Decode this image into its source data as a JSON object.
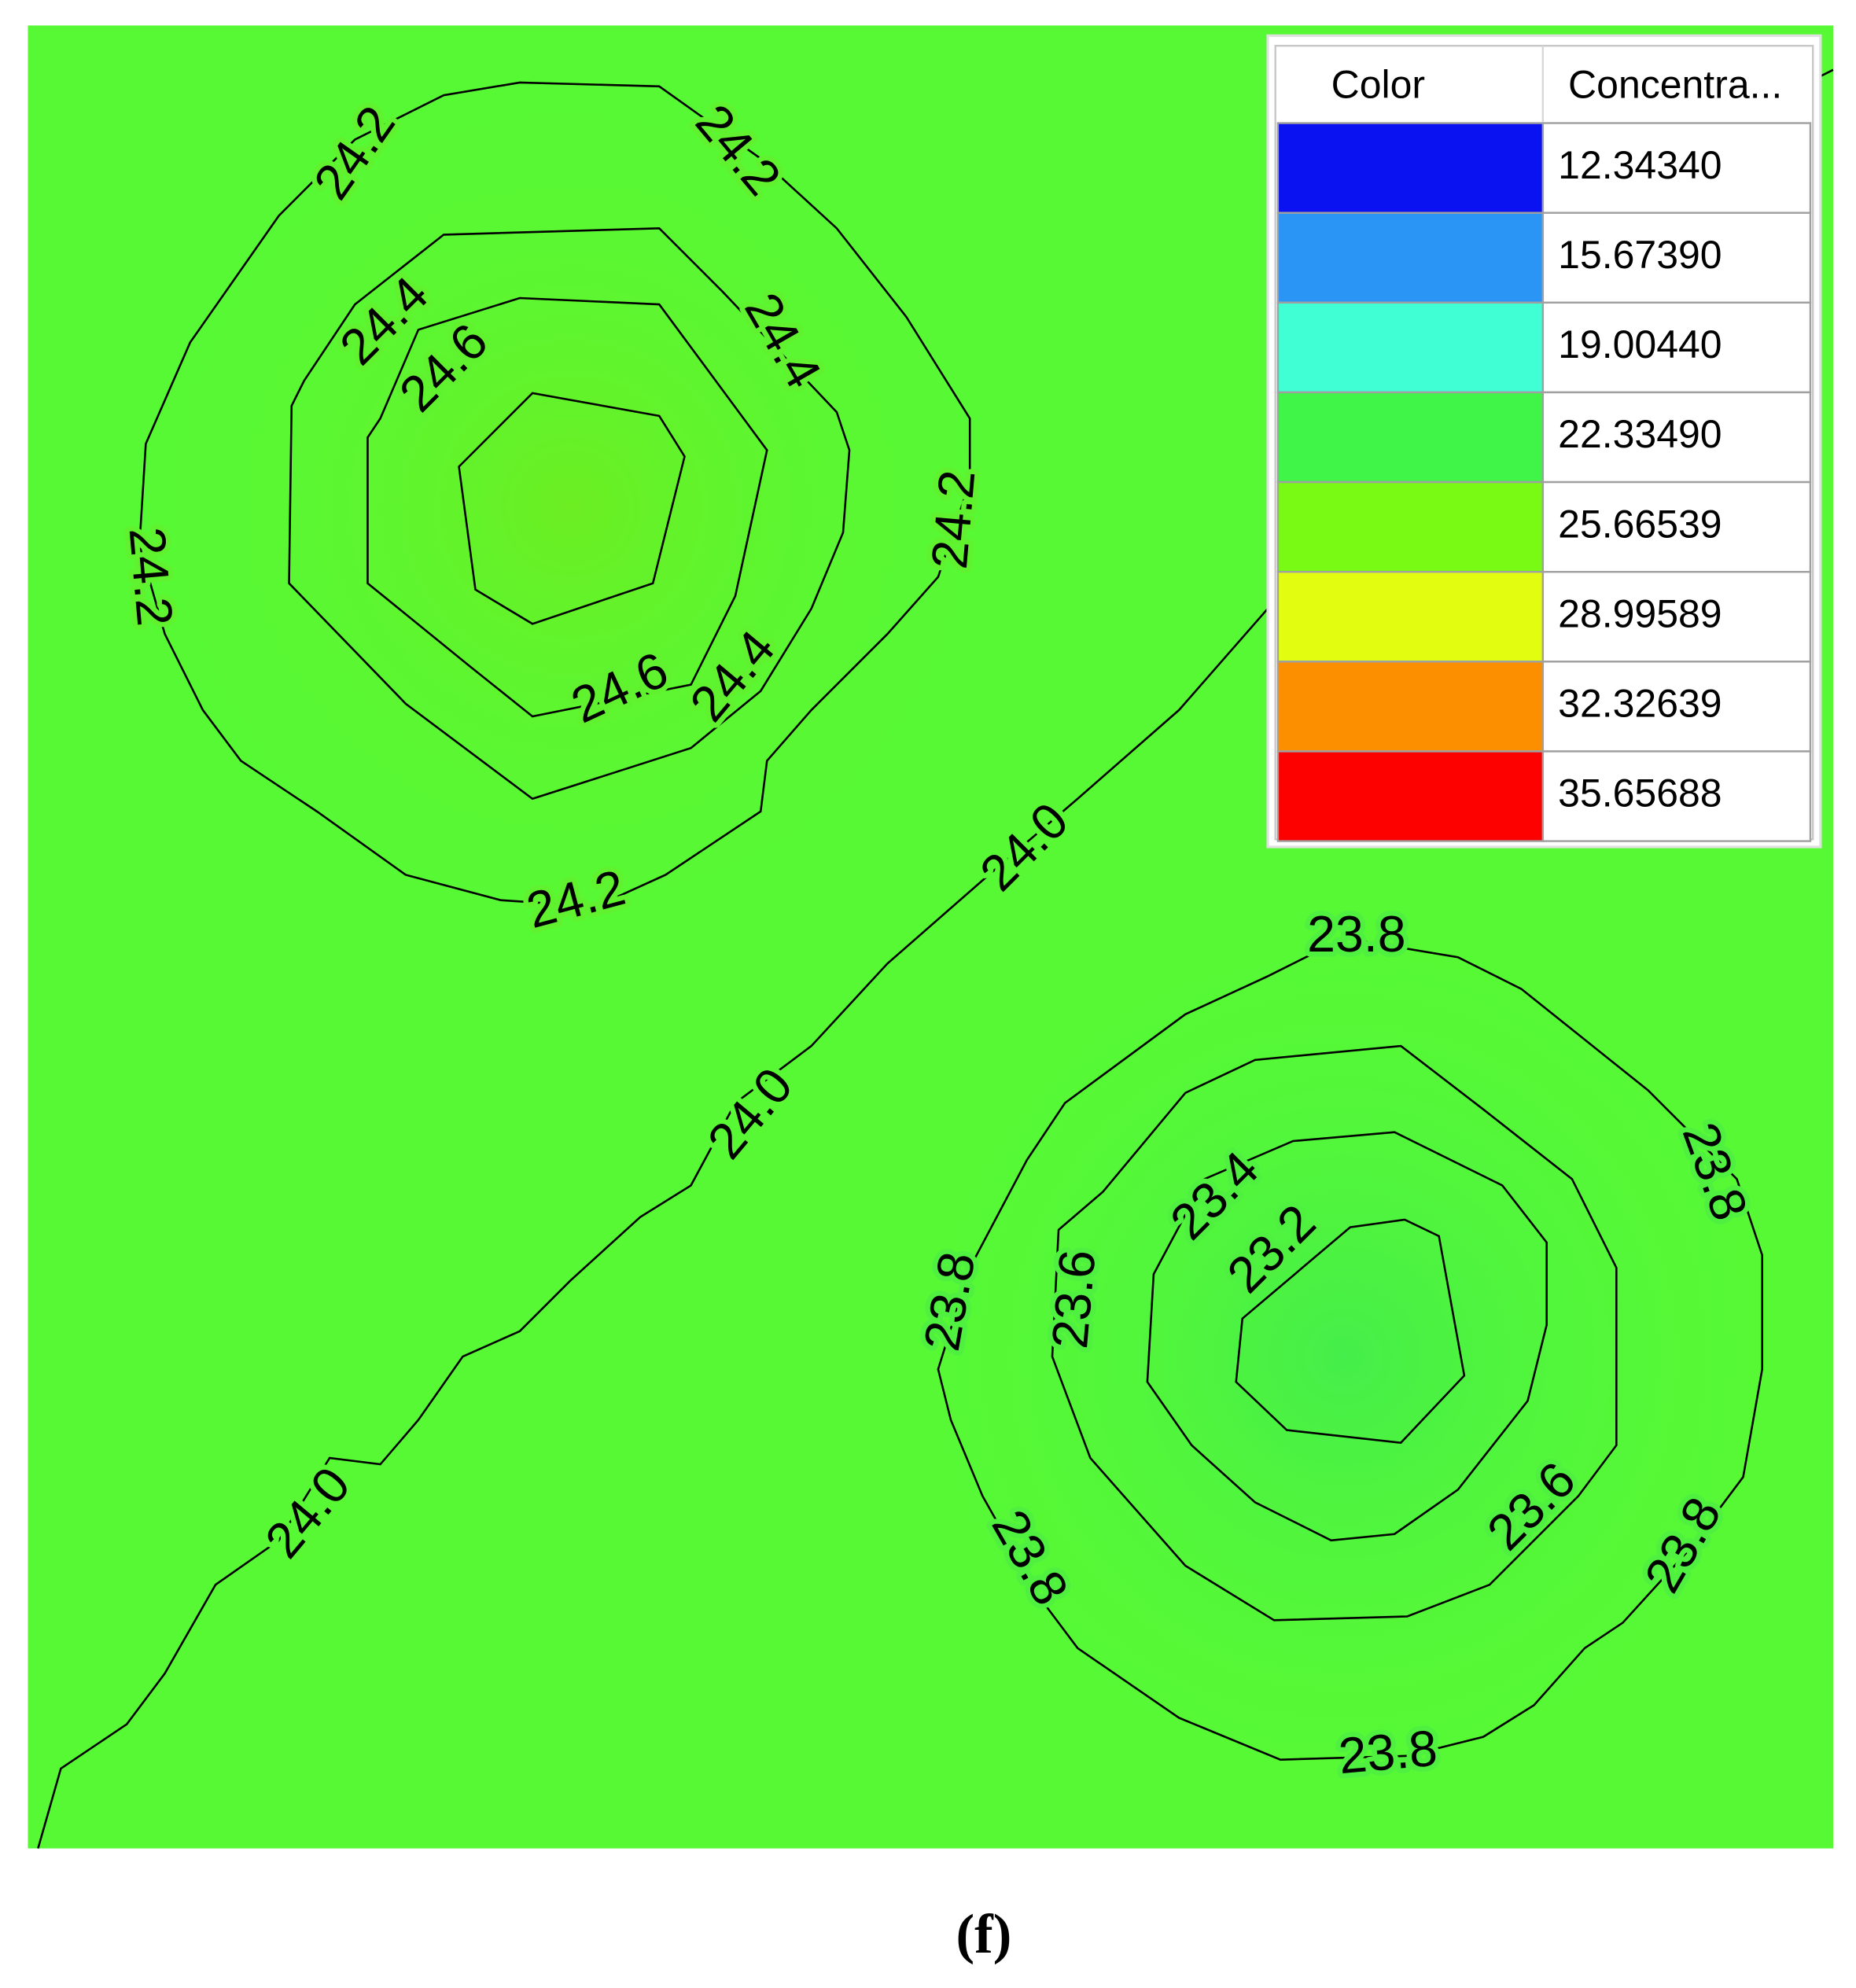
{
  "map": {
    "contour_labels": [
      "24.2",
      "24.2",
      "24.4",
      "24.6",
      "24.4",
      "24.2",
      "24.2",
      "24.6",
      "24.4",
      "24.2",
      "24.0",
      "24.0",
      "24.0",
      "23.8",
      "23.8",
      "23.4",
      "23.2",
      "23.6",
      "23.8",
      "23.6",
      "23.8",
      "23.8",
      "23.8"
    ]
  },
  "legend": {
    "header": [
      "Color",
      "Concentra..."
    ],
    "rows": [
      {
        "color": "#0a12f2",
        "value": "12.34340"
      },
      {
        "color": "#2b95f5",
        "value": "15.67390"
      },
      {
        "color": "#40ffd4",
        "value": "19.00440"
      },
      {
        "color": "#40f548",
        "value": "22.33490"
      },
      {
        "color": "#78fa14",
        "value": "25.66539"
      },
      {
        "color": "#e2fd0f",
        "value": "28.99589"
      },
      {
        "color": "#fb8f00",
        "value": "32.32639"
      },
      {
        "color": "#fd0000",
        "value": "35.65688"
      }
    ]
  },
  "caption": "(f)"
}
